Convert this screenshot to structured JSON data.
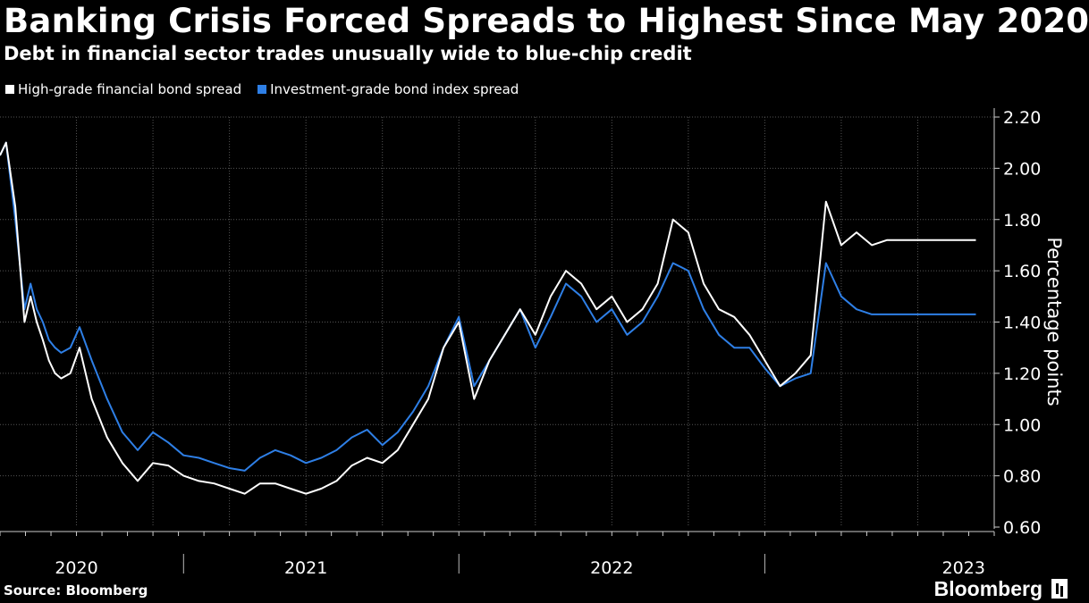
{
  "chart_data": {
    "type": "line",
    "title": "Banking Crisis Forced Spreads to Highest Since May 2020",
    "subtitle": "Debt in financial sector trades unusually wide to blue-chip credit",
    "xlabel": "",
    "ylabel": "Percentage points",
    "ylim": [
      0.6,
      2.2
    ],
    "yticks": [
      0.6,
      0.8,
      1.0,
      1.2,
      1.4,
      1.6,
      1.8,
      2.0,
      2.2
    ],
    "ytick_labels": [
      "0.60",
      "0.80",
      "1.00",
      "1.20",
      "1.40",
      "1.60",
      "1.80",
      "2.00",
      "2.20"
    ],
    "x_range": [
      2020.0,
      2023.25
    ],
    "year_labels": [
      {
        "label": "2020",
        "center": 2020.25
      },
      {
        "label": "2021",
        "center": 2021.0
      },
      {
        "label": "2022",
        "center": 2022.0
      },
      {
        "label": "2023",
        "center": 2023.15
      }
    ],
    "x": [
      2020.0,
      2020.02,
      2020.05,
      2020.08,
      2020.1,
      2020.12,
      2020.14,
      2020.16,
      2020.18,
      2020.2,
      2020.23,
      2020.26,
      2020.3,
      2020.35,
      2020.4,
      2020.45,
      2020.5,
      2020.55,
      2020.6,
      2020.65,
      2020.7,
      2020.75,
      2020.8,
      2020.85,
      2020.9,
      2020.95,
      2021.0,
      2021.05,
      2021.1,
      2021.15,
      2021.2,
      2021.25,
      2021.3,
      2021.35,
      2021.4,
      2021.45,
      2021.5,
      2021.55,
      2021.6,
      2021.65,
      2021.7,
      2021.75,
      2021.8,
      2021.85,
      2021.9,
      2021.95,
      2022.0,
      2022.05,
      2022.1,
      2022.15,
      2022.2,
      2022.25,
      2022.3,
      2022.35,
      2022.4,
      2022.45,
      2022.5,
      2022.55,
      2022.6,
      2022.65,
      2022.7,
      2022.75,
      2022.8,
      2022.85,
      2022.9,
      2022.95,
      2023.0,
      2023.04,
      2023.08,
      2023.1,
      2023.12,
      2023.14,
      2023.17,
      2023.19
    ],
    "series": [
      {
        "name": "High-grade financial bond spread",
        "color": "#ffffff",
        "values": [
          2.05,
          2.1,
          1.85,
          1.4,
          1.5,
          1.4,
          1.33,
          1.25,
          1.2,
          1.18,
          1.2,
          1.3,
          1.1,
          0.95,
          0.85,
          0.78,
          0.85,
          0.84,
          0.8,
          0.78,
          0.77,
          0.75,
          0.73,
          0.77,
          0.77,
          0.75,
          0.73,
          0.75,
          0.78,
          0.84,
          0.87,
          0.85,
          0.9,
          1.0,
          1.1,
          1.3,
          1.4,
          1.1,
          1.25,
          1.35,
          1.45,
          1.35,
          1.5,
          1.6,
          1.55,
          1.45,
          1.5,
          1.4,
          1.45,
          1.55,
          1.8,
          1.75,
          1.55,
          1.45,
          1.42,
          1.35,
          1.25,
          1.15,
          1.2,
          1.27,
          1.87,
          1.7,
          1.75,
          1.7,
          1.72,
          1.72,
          1.72,
          1.72,
          1.72,
          1.72,
          1.72,
          1.72,
          1.72,
          1.72
        ]
      },
      {
        "name": "Investment-grade bond index spread",
        "color": "#2e7fe6",
        "values": [
          2.05,
          2.1,
          1.8,
          1.45,
          1.55,
          1.45,
          1.4,
          1.33,
          1.3,
          1.28,
          1.3,
          1.38,
          1.25,
          1.1,
          0.97,
          0.9,
          0.97,
          0.93,
          0.88,
          0.87,
          0.85,
          0.83,
          0.82,
          0.87,
          0.9,
          0.88,
          0.85,
          0.87,
          0.9,
          0.95,
          0.98,
          0.92,
          0.97,
          1.05,
          1.15,
          1.3,
          1.42,
          1.15,
          1.25,
          1.35,
          1.45,
          1.3,
          1.42,
          1.55,
          1.5,
          1.4,
          1.45,
          1.35,
          1.4,
          1.5,
          1.63,
          1.6,
          1.45,
          1.35,
          1.3,
          1.3,
          1.22,
          1.15,
          1.18,
          1.2,
          1.63,
          1.5,
          1.45,
          1.43,
          1.43,
          1.43,
          1.43,
          1.43,
          1.43,
          1.43,
          1.43,
          1.43,
          1.43,
          1.43
        ]
      }
    ]
  },
  "footer": {
    "source": "Source: Bloomberg",
    "brand": "Bloomberg"
  }
}
